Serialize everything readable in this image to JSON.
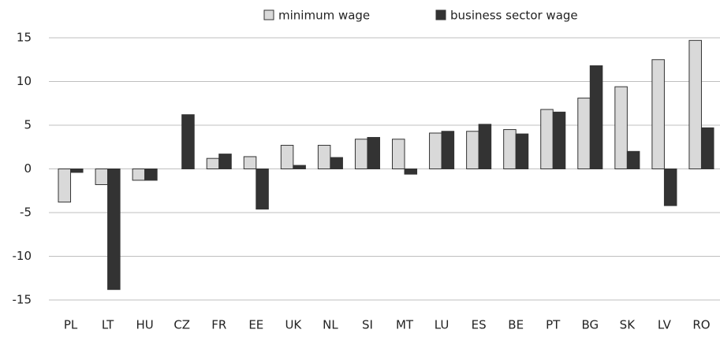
{
  "chart_data": {
    "type": "bar",
    "categories": [
      "PL",
      "LT",
      "HU",
      "CZ",
      "FR",
      "EE",
      "UK",
      "NL",
      "SI",
      "MT",
      "LU",
      "ES",
      "BE",
      "PT",
      "BG",
      "SK",
      "LV",
      "RO"
    ],
    "series": [
      {
        "name": "minimum wage",
        "color": "#d9d9d9",
        "values": [
          -3.8,
          -1.8,
          -1.3,
          0,
          1.2,
          1.4,
          2.7,
          2.7,
          3.4,
          3.4,
          4.1,
          4.3,
          4.5,
          6.8,
          8.1,
          9.4,
          12.5,
          14.7
        ]
      },
      {
        "name": "business sector wage",
        "color": "#333333",
        "values": [
          -0.4,
          -13.8,
          -1.3,
          6.2,
          1.7,
          -4.6,
          0.4,
          1.3,
          3.6,
          -0.6,
          4.3,
          5.1,
          4.0,
          6.5,
          11.8,
          2.0,
          -4.2,
          4.7
        ]
      }
    ],
    "ylim": [
      -15,
      15
    ],
    "yticks": [
      -15,
      -10,
      -5,
      0,
      5,
      10,
      15
    ],
    "grid": true
  }
}
